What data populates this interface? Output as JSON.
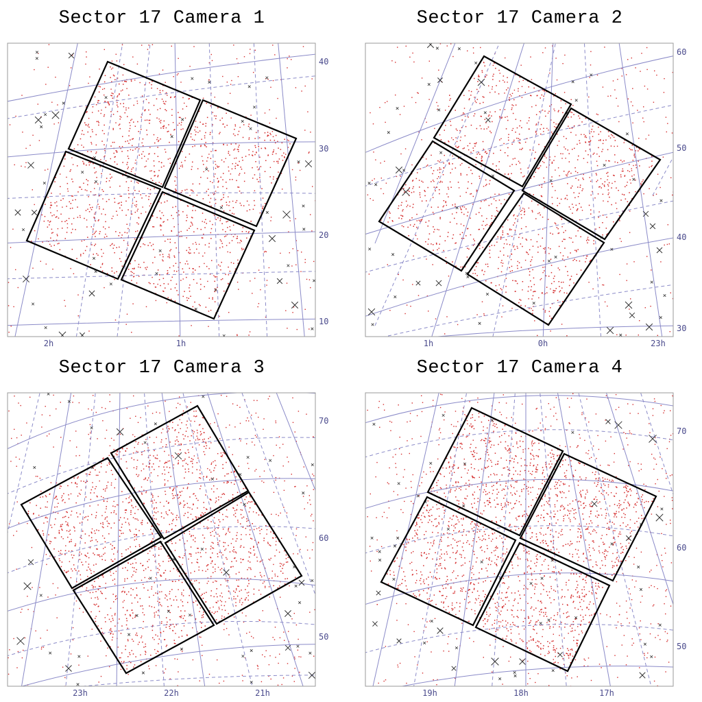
{
  "colors": {
    "grid_line": "#8a8ac8",
    "tick_text": "#4a4a8c",
    "frame": "#9a9a9a",
    "star_dot": "#d42a2a",
    "bright_star": "#333333",
    "ccd_outline": "#000000"
  },
  "chart_data": [
    {
      "type": "scatter",
      "title": "Sector 17 Camera 1",
      "dec_labels": [
        "40",
        "30",
        "20",
        "10"
      ],
      "ra_labels": [
        "2h",
        "1h"
      ],
      "density": 0.85
    },
    {
      "type": "scatter",
      "title": "Sector 17 Camera 2",
      "dec_labels": [
        "60",
        "50",
        "40",
        "30"
      ],
      "ra_labels": [
        "1h",
        "0h",
        "23h"
      ],
      "density": 0.85
    },
    {
      "type": "scatter",
      "title": "Sector 17 Camera 3",
      "dec_labels": [
        "70",
        "60",
        "50"
      ],
      "ra_labels": [
        "23h",
        "22h",
        "21h"
      ],
      "density": 1.1
    },
    {
      "type": "scatter",
      "title": "Sector 17 Camera 4",
      "dec_labels": [
        "70",
        "60",
        "50"
      ],
      "ra_labels": [
        "19h",
        "18h",
        "17h"
      ],
      "density": 1.2
    }
  ]
}
